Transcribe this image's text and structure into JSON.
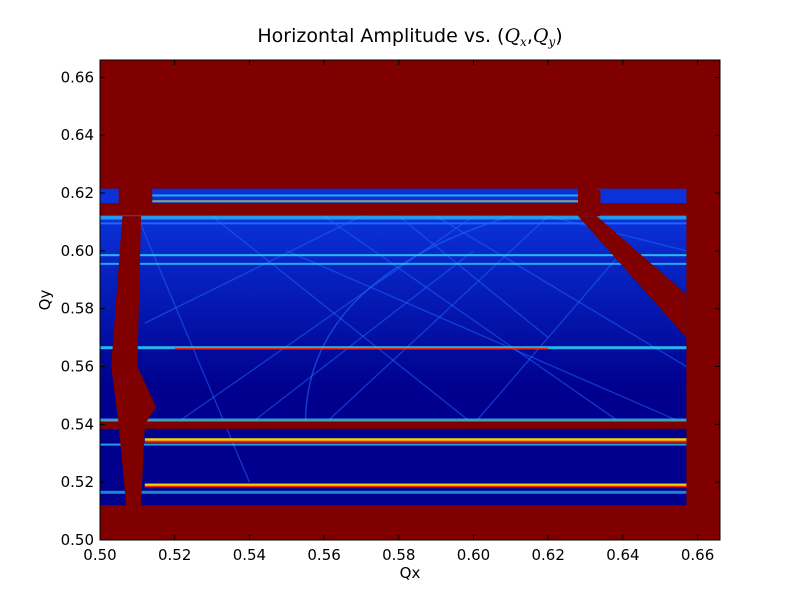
{
  "chart_data": {
    "type": "heatmap",
    "title_prefix": "Horizontal Amplitude vs. (",
    "title_math_1": "Q",
    "title_sub_1": "x",
    "title_sep": ",",
    "title_math_2": "Q",
    "title_sub_2": "y",
    "title_suffix": ")",
    "xlabel": "Qx",
    "ylabel": "Qy",
    "xlim": [
      0.5,
      0.666
    ],
    "ylim": [
      0.5,
      0.666
    ],
    "x_ticks": [
      "0.50",
      "0.52",
      "0.54",
      "0.56",
      "0.58",
      "0.60",
      "0.62",
      "0.64",
      "0.66"
    ],
    "y_ticks": [
      "0.50",
      "0.52",
      "0.54",
      "0.56",
      "0.58",
      "0.60",
      "0.62",
      "0.64",
      "0.66"
    ],
    "colormap": "jet",
    "background_color": "#800000",
    "stable_region": {
      "qx": [
        0.5,
        0.657
      ],
      "qy": [
        0.512,
        0.612
      ]
    },
    "colors": {
      "dark_red": "#800000",
      "deep_blue": "#00008c",
      "blue": "#0a32d8",
      "bright_blue": "#1e64ff",
      "cyan": "#30e0ff",
      "yellow": "#ffee00",
      "red": "#ff1a00"
    }
  }
}
